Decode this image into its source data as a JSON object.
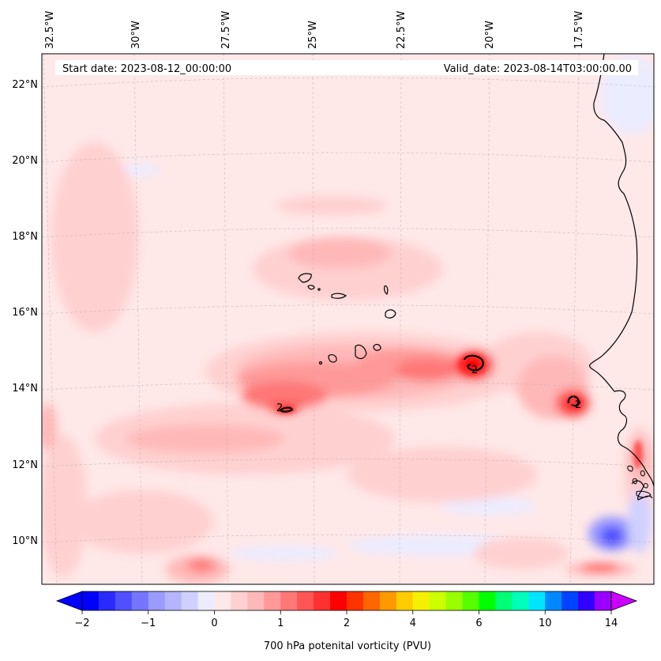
{
  "map": {
    "start_date_label": "Start date: 2023-08-12_00:00:00",
    "valid_date_label": "Valid_date: 2023-08-14T03:00:00.00",
    "lon_labels": [
      "32.5°W",
      "30°W",
      "27.5°W",
      "25°W",
      "22.5°W",
      "20°W",
      "17.5°W"
    ],
    "lat_labels": [
      "22°N",
      "20°N",
      "18°N",
      "16°N",
      "14°N",
      "12°N",
      "10°N"
    ],
    "contour_value_label": "2"
  },
  "colorbar": {
    "label": "700 hPa potenital vorticity (PVU)",
    "tick_labels": [
      "−2",
      "−1",
      "0",
      "1",
      "2",
      "4",
      "6",
      "10",
      "14"
    ],
    "colors": [
      "#0000ff",
      "#2a2aff",
      "#5050ff",
      "#7575ff",
      "#9a9aff",
      "#b5b5ff",
      "#d0d0ff",
      "#ececff",
      "#ffe8e8",
      "#ffd0d0",
      "#ffb8b8",
      "#ff9999",
      "#ff7777",
      "#ff5555",
      "#ff3030",
      "#ff0000",
      "#ff3300",
      "#ff6600",
      "#ff9900",
      "#ffcc00",
      "#f5f000",
      "#ccff00",
      "#99ff00",
      "#55ff00",
      "#00ff00",
      "#00ff77",
      "#00ffbb",
      "#00e5ff",
      "#0088ff",
      "#0044ff",
      "#3300ff",
      "#9900ff"
    ],
    "under_color": "#0000ff",
    "over_color": "#cc00ff"
  }
}
